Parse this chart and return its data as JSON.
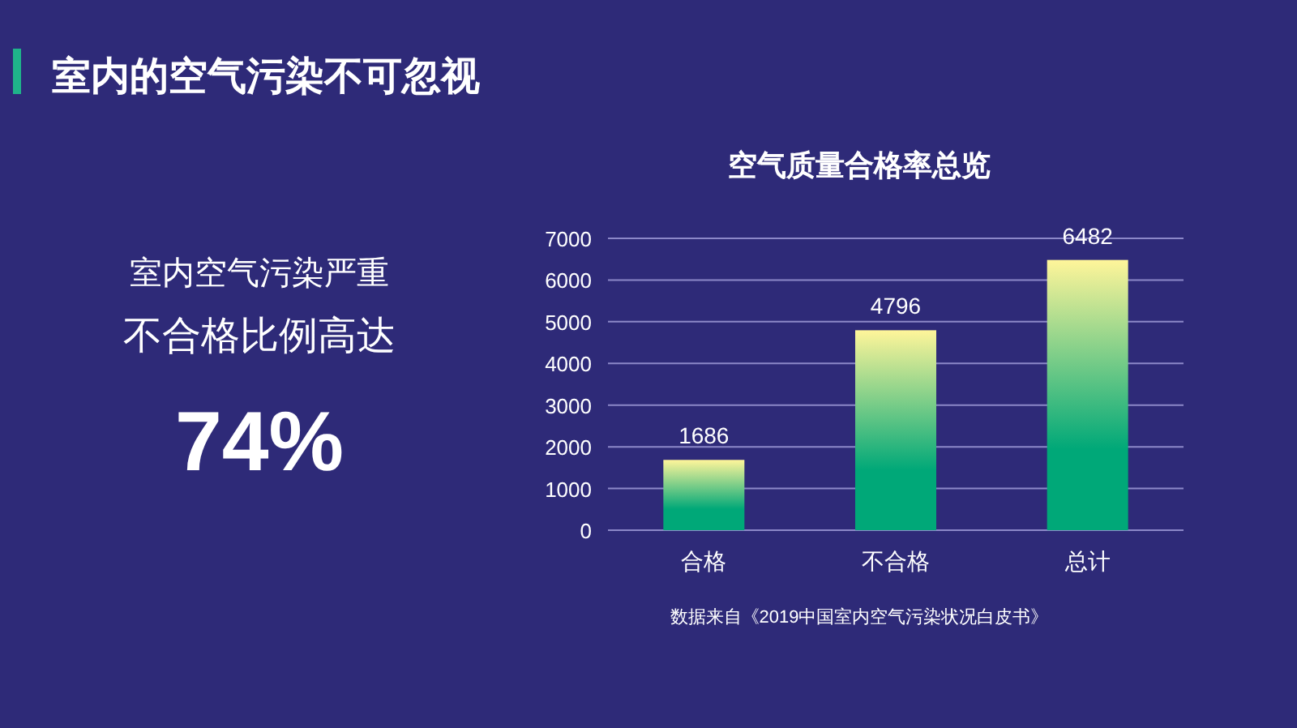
{
  "chart_data": [
    {
      "type": "other",
      "title": "室内的空气污染不可忽视",
      "annotations": [
        "室内空气污染严重",
        "不合格比例高达",
        "74%"
      ]
    },
    {
      "type": "bar",
      "title": "空气质量合格率总览",
      "categories": [
        "合格",
        "不合格",
        "总计"
      ],
      "values": [
        1686,
        4796,
        6482
      ],
      "color": "#00a878",
      "ylim": [
        0,
        7000
      ],
      "yticks": [
        0,
        1000,
        2000,
        3000,
        4000,
        5000,
        6000,
        7000
      ],
      "grid": "y",
      "data_labels": true,
      "annotations": [
        "数据来自《2019中国室内空气污染状况白皮书》"
      ]
    }
  ]
}
